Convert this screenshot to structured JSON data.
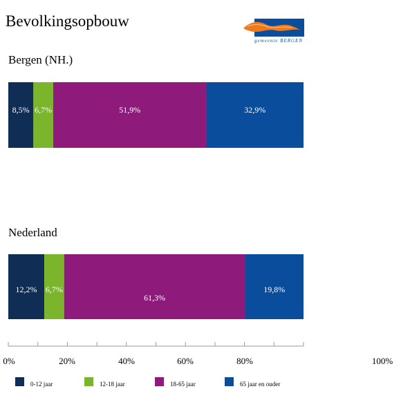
{
  "page": {
    "title": "Bevolkingsopbouw"
  },
  "logo": {
    "text": "gemeente BERGEN"
  },
  "colors": {
    "cat1": "#0f2d55",
    "cat2": "#7ab52c",
    "cat3": "#8e1a7b",
    "cat4": "#0a4d9c"
  },
  "chart_data": {
    "type": "bar",
    "orientation": "horizontal",
    "stacked": true,
    "categories": [
      "Bergen (NH.)",
      "Nederland"
    ],
    "series": [
      {
        "name": "0-12 jaar",
        "values": [
          8.5,
          12.2
        ],
        "labels": [
          "8,5%",
          "12,2%"
        ],
        "color": "#0f2d55"
      },
      {
        "name": "12-18 jaar",
        "values": [
          6.7,
          6.7
        ],
        "labels": [
          "6,7%",
          "6,7%"
        ],
        "color": "#7ab52c"
      },
      {
        "name": "18-65 jaar",
        "values": [
          51.9,
          61.3
        ],
        "labels": [
          "51,9%",
          "61,3%"
        ],
        "color": "#8e1a7b"
      },
      {
        "name": "65 jaar  en ouder",
        "values": [
          32.9,
          19.8
        ],
        "labels": [
          "32,9%",
          "19,8%"
        ],
        "color": "#0a4d9c"
      }
    ],
    "x_ticks": [
      "0%",
      "20%",
      "40%",
      "60%",
      "80%",
      "100%"
    ],
    "xlim": [
      0,
      100
    ],
    "legend": "bottom"
  }
}
